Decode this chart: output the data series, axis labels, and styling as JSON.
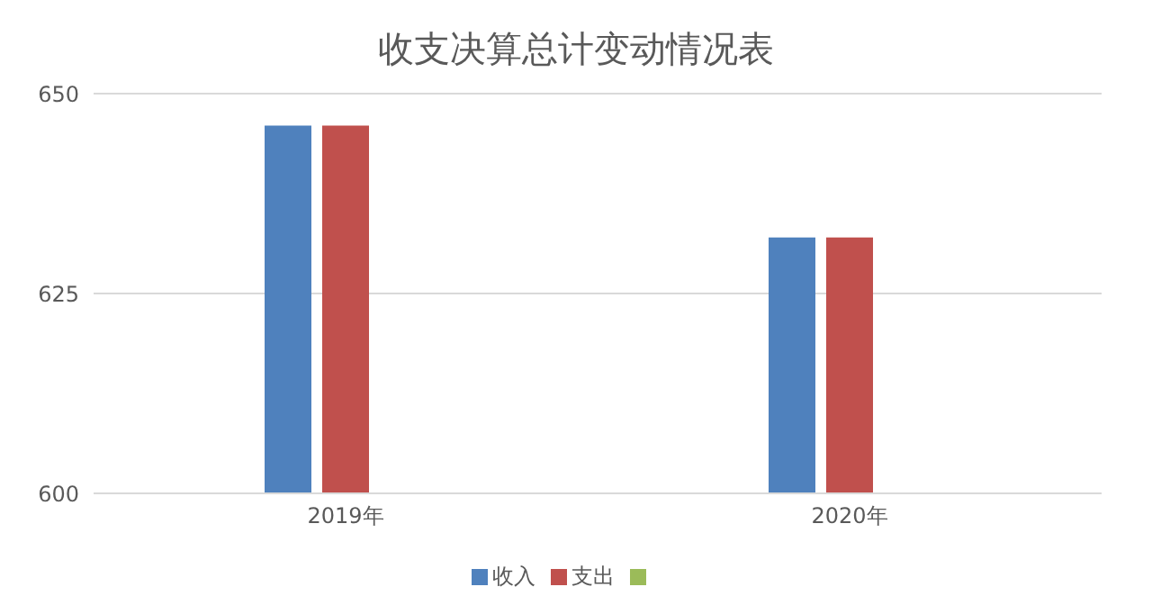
{
  "chart_data": {
    "type": "bar",
    "title": "收支决算总计变动情况表",
    "categories": [
      "2019年",
      "2020年"
    ],
    "series": [
      {
        "name": "收入",
        "color": "#4f81bd",
        "values": [
          646,
          632
        ]
      },
      {
        "name": "支出",
        "color": "#c0504d",
        "values": [
          646,
          632
        ]
      },
      {
        "color": "#9bbb59",
        "values": [
          null,
          null
        ]
      }
    ],
    "ylim": [
      600,
      650
    ],
    "yticks": [
      600,
      625,
      650
    ],
    "grid": "y",
    "legend": "bottom"
  }
}
